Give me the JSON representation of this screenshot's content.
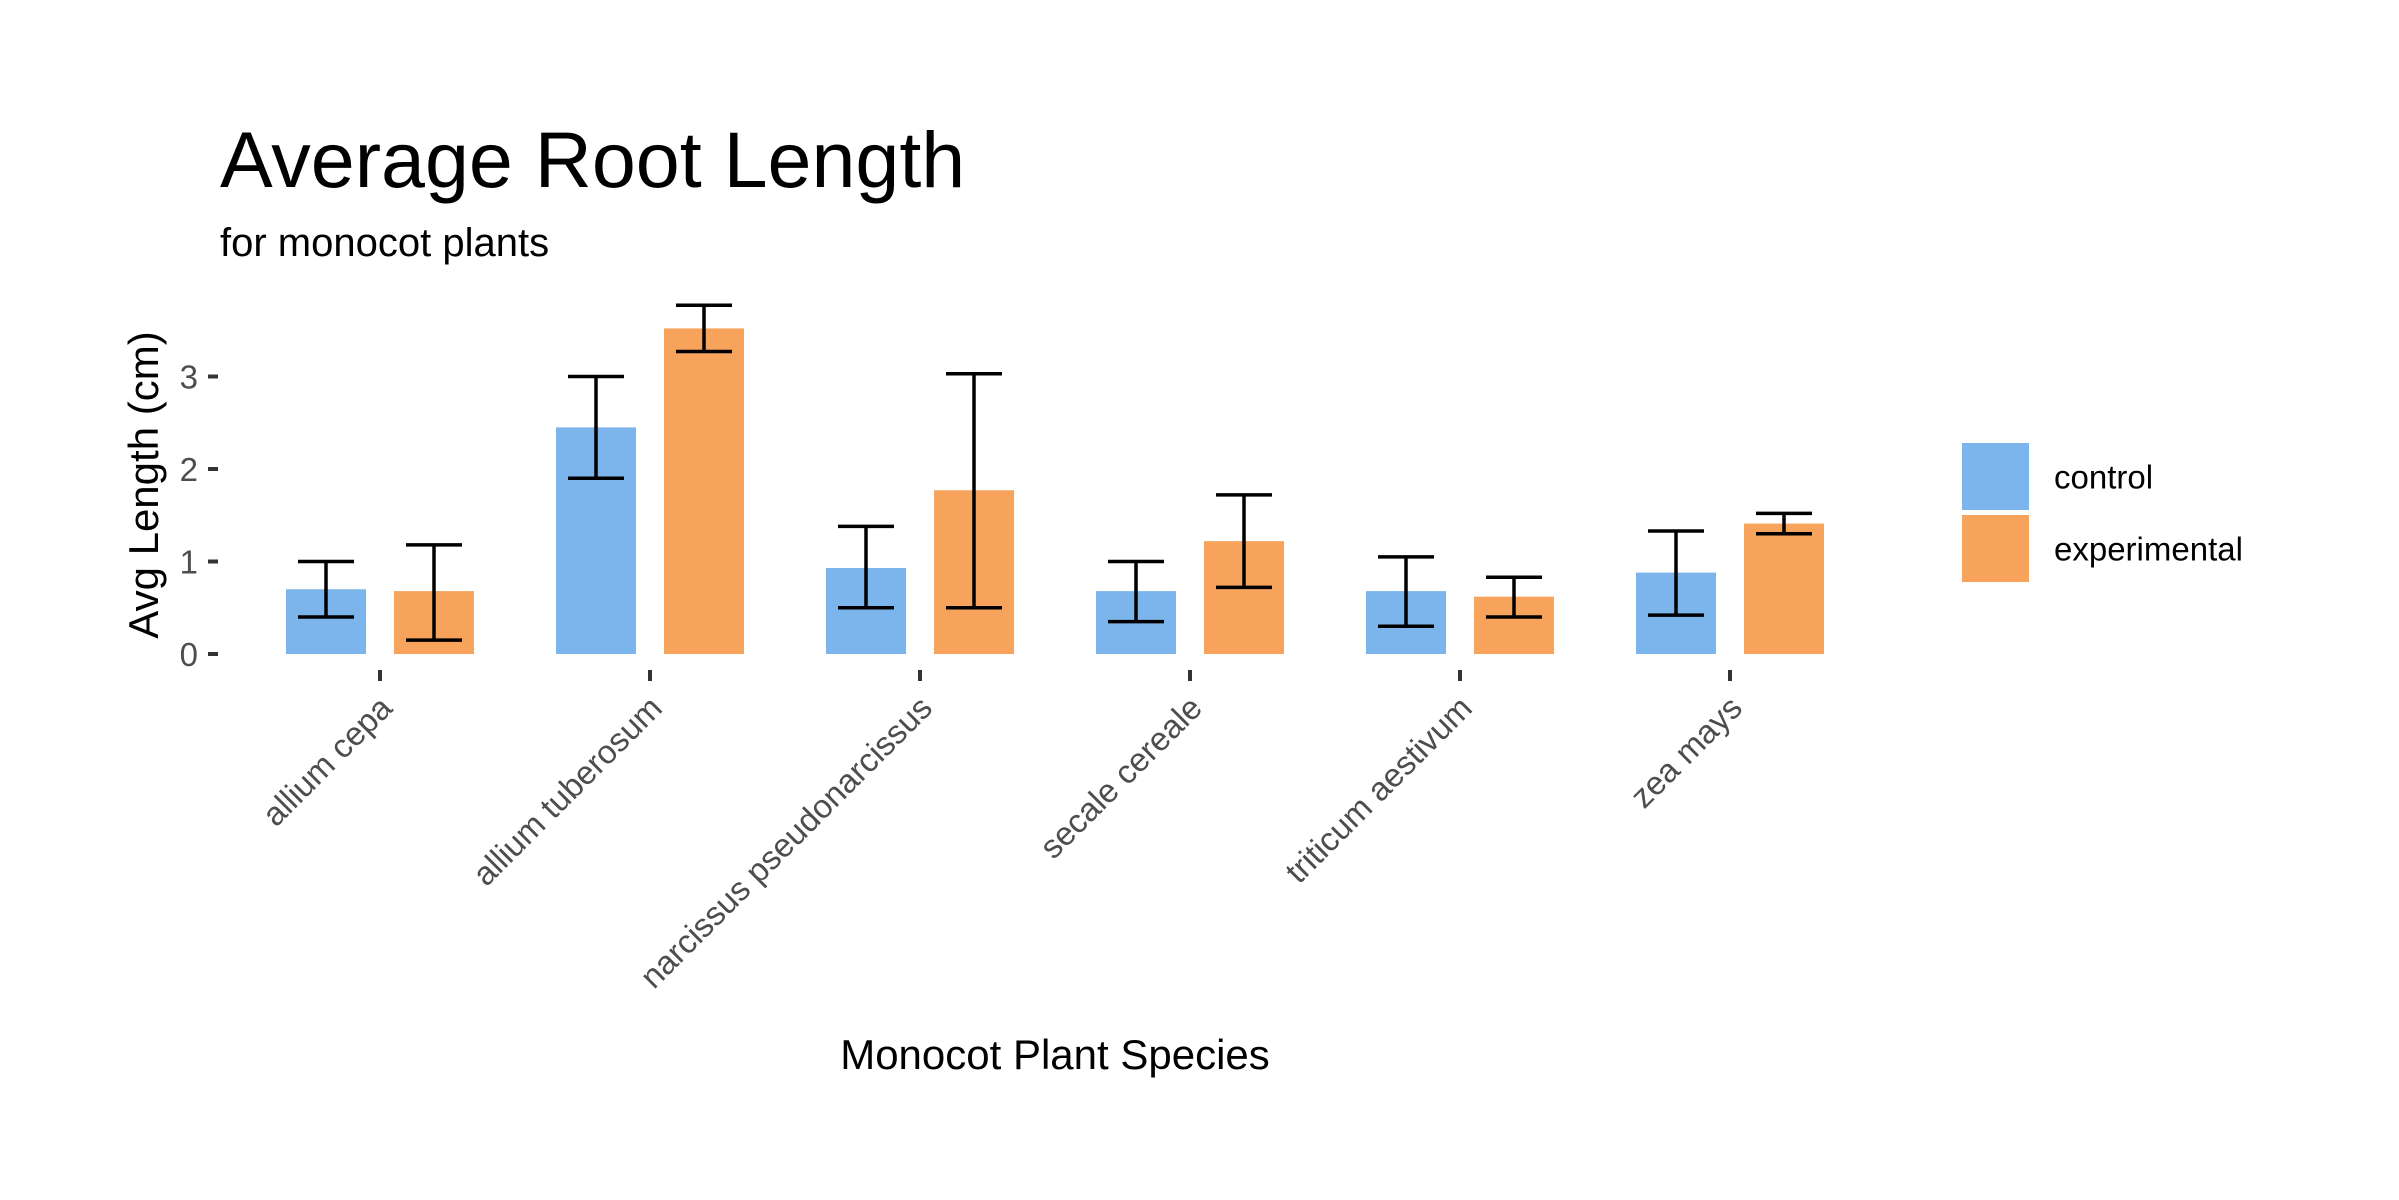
{
  "chart_data": {
    "type": "bar",
    "title": "Average Root Length",
    "subtitle": "for monocot plants",
    "xlabel": "Monocot Plant Species",
    "ylabel": "Avg Length (cm)",
    "ylim": [
      0,
      3.8
    ],
    "yticks": [
      0,
      1,
      2,
      3
    ],
    "grid": false,
    "legend_position": "right",
    "categories": [
      "allium cepa",
      "allium tuberosum",
      "narcissus pseudonarcissus",
      "secale cereale",
      "triticum aestivum",
      "zea mays"
    ],
    "series": [
      {
        "name": "control",
        "color": "#7cb5ec",
        "values": [
          0.7,
          2.45,
          0.93,
          0.68,
          0.68,
          0.88
        ],
        "error_low": [
          0.4,
          1.9,
          0.5,
          0.35,
          0.3,
          0.42
        ],
        "error_high": [
          1.0,
          3.0,
          1.38,
          1.0,
          1.05,
          1.33
        ]
      },
      {
        "name": "experimental",
        "color": "#f7a35c",
        "values": [
          0.68,
          3.52,
          1.77,
          1.22,
          0.62,
          1.41
        ],
        "error_low": [
          0.15,
          3.27,
          0.5,
          0.72,
          0.4,
          1.3
        ],
        "error_high": [
          1.18,
          3.77,
          3.03,
          1.72,
          0.83,
          1.52
        ]
      }
    ]
  }
}
